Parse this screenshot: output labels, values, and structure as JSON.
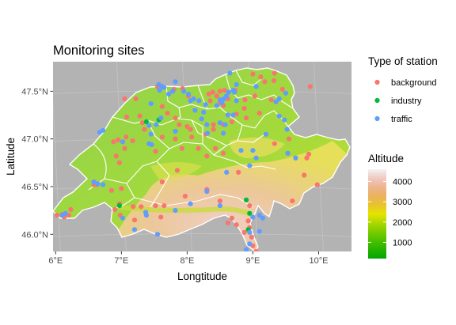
{
  "chart_data": {
    "type": "scatter",
    "title": "Monitoring sites",
    "xlabel": "Longtitude",
    "ylabel": "Latitude",
    "xlim": [
      5.96,
      10.5
    ],
    "ylim": [
      45.82,
      47.81
    ],
    "x_ticks": [
      {
        "value": 6,
        "label": "6°E"
      },
      {
        "value": 7,
        "label": "7°E"
      },
      {
        "value": 8,
        "label": "8°E"
      },
      {
        "value": 9,
        "label": "9°E"
      },
      {
        "value": 10,
        "label": "10°E"
      }
    ],
    "y_ticks": [
      {
        "value": 46.0,
        "label": "46.0°N"
      },
      {
        "value": 46.5,
        "label": "46.5°N"
      },
      {
        "value": 47.0,
        "label": "47.0°N"
      },
      {
        "value": 47.5,
        "label": "47.5°N"
      }
    ],
    "grid": true,
    "background_color": "#b3b3b3",
    "legend_station": {
      "title": "Type of station",
      "placement": "right",
      "entries": [
        {
          "label": "background",
          "color": "#f8766d"
        },
        {
          "label": "industry",
          "color": "#00ba38"
        },
        {
          "label": "traffic",
          "color": "#619cff"
        }
      ]
    },
    "legend_altitude": {
      "title": "Altitude",
      "placement": "right",
      "min": 200,
      "max": 4600,
      "tick_values": [
        1000,
        2000,
        3000,
        4000
      ],
      "tick_labels": [
        "1000",
        "2000",
        "3000",
        "4000"
      ],
      "colors": [
        "#00a600",
        "#24b300",
        "#4cc000",
        "#7acc00",
        "#add800",
        "#e6e400",
        "#e8c32e",
        "#ebb25e",
        "#edb48e",
        "#f0c9c0",
        "#f2f2f2"
      ]
    },
    "series": [
      {
        "name": "background",
        "color": "#f8766d",
        "points": [
          [
            6.02,
            46.2
          ],
          [
            6.1,
            46.21
          ],
          [
            6.13,
            46.18
          ],
          [
            6.2,
            46.2
          ],
          [
            6.23,
            46.26
          ],
          [
            6.58,
            46.52
          ],
          [
            6.63,
            46.52
          ],
          [
            6.85,
            46.46
          ],
          [
            6.92,
            46.82
          ],
          [
            6.88,
            46.97
          ],
          [
            6.95,
            46.99
          ],
          [
            7.07,
            47.02
          ],
          [
            7.05,
            46.9
          ],
          [
            6.97,
            46.75
          ],
          [
            7.0,
            46.48
          ],
          [
            6.97,
            46.32
          ],
          [
            6.9,
            46.26
          ],
          [
            7.08,
            47.23
          ],
          [
            7.17,
            46.98
          ],
          [
            7.28,
            47.24
          ],
          [
            7.32,
            47.17
          ],
          [
            7.35,
            47.1
          ],
          [
            7.05,
            47.42
          ],
          [
            7.22,
            47.42
          ],
          [
            7.52,
            46.87
          ],
          [
            7.62,
            47.02
          ],
          [
            7.82,
            47.22
          ],
          [
            7.88,
            47.15
          ],
          [
            7.62,
            46.55
          ],
          [
            7.85,
            46.67
          ],
          [
            7.62,
            47.34
          ],
          [
            7.7,
            47.27
          ],
          [
            7.55,
            47.55
          ],
          [
            7.8,
            47.52
          ],
          [
            7.93,
            47.53
          ],
          [
            8.02,
            47.45
          ],
          [
            8.0,
            47.13
          ],
          [
            8.07,
            47.02
          ],
          [
            7.92,
            46.9
          ],
          [
            7.82,
            47.0
          ],
          [
            8.05,
            47.1
          ],
          [
            8.28,
            47.05
          ],
          [
            8.35,
            47.4
          ],
          [
            8.33,
            47.47
          ],
          [
            8.39,
            47.49
          ],
          [
            8.45,
            47.45
          ],
          [
            8.5,
            47.5
          ],
          [
            8.55,
            47.35
          ],
          [
            8.5,
            47.38
          ],
          [
            8.62,
            47.42
          ],
          [
            8.57,
            47.51
          ],
          [
            8.73,
            47.51
          ],
          [
            8.75,
            47.26
          ],
          [
            8.87,
            47.32
          ],
          [
            8.9,
            47.22
          ],
          [
            8.88,
            47.41
          ],
          [
            8.68,
            47.18
          ],
          [
            8.55,
            47.15
          ],
          [
            8.4,
            47.15
          ],
          [
            8.4,
            47.1
          ],
          [
            8.43,
            46.9
          ],
          [
            8.55,
            46.85
          ],
          [
            8.17,
            46.9
          ],
          [
            7.97,
            46.4
          ],
          [
            7.65,
            46.3
          ],
          [
            7.52,
            46.3
          ],
          [
            7.3,
            46.29
          ],
          [
            7.18,
            46.29
          ],
          [
            6.98,
            46.2
          ],
          [
            7.2,
            46.15
          ],
          [
            7.6,
            46.18
          ],
          [
            8.3,
            46.47
          ],
          [
            8.5,
            46.35
          ],
          [
            8.62,
            46.12
          ],
          [
            8.68,
            46.17
          ],
          [
            8.75,
            46.1
          ],
          [
            8.87,
            46.02
          ],
          [
            8.93,
            46.14
          ],
          [
            8.95,
            46.07
          ],
          [
            8.98,
            45.97
          ],
          [
            9.0,
            45.88
          ],
          [
            9.05,
            45.82
          ],
          [
            8.95,
            46.3
          ],
          [
            9.1,
            47.27
          ],
          [
            9.03,
            47.45
          ],
          [
            9.2,
            47.05
          ],
          [
            9.28,
            47.41
          ],
          [
            9.33,
            46.95
          ],
          [
            9.45,
            47.52
          ],
          [
            9.55,
            47.0
          ],
          [
            9.53,
            46.85
          ],
          [
            9.6,
            46.35
          ],
          [
            9.65,
            46.8
          ],
          [
            9.78,
            46.62
          ],
          [
            9.82,
            46.8
          ],
          [
            9.85,
            46.84
          ],
          [
            9.87,
            47.55
          ],
          [
            9.98,
            46.52
          ],
          [
            9.0,
            47.68
          ],
          [
            9.12,
            47.65
          ],
          [
            9.18,
            47.6
          ],
          [
            9.05,
            47.55
          ],
          [
            8.78,
            46.65
          ],
          [
            9.33,
            47.69
          ],
          [
            9.32,
            47.61
          ],
          [
            8.3,
            46.82
          ]
        ]
      },
      {
        "name": "industry",
        "color": "#00ba38",
        "points": [
          [
            6.97,
            46.3
          ],
          [
            7.38,
            47.18
          ],
          [
            7.57,
            47.2
          ],
          [
            8.93,
            46.05
          ],
          [
            8.9,
            46.36
          ],
          [
            8.95,
            46.22
          ]
        ]
      },
      {
        "name": "traffic",
        "color": "#619cff",
        "points": [
          [
            6.1,
            46.2
          ],
          [
            6.15,
            46.22
          ],
          [
            6.64,
            46.53
          ],
          [
            6.72,
            46.52
          ],
          [
            6.58,
            46.55
          ],
          [
            6.67,
            47.07
          ],
          [
            6.72,
            47.09
          ],
          [
            7.02,
            46.97
          ],
          [
            7.42,
            47.14
          ],
          [
            7.45,
            47.05
          ],
          [
            7.42,
            46.95
          ],
          [
            7.46,
            46.94
          ],
          [
            7.53,
            47.15
          ],
          [
            7.6,
            47.22
          ],
          [
            7.57,
            47.57
          ],
          [
            7.62,
            47.55
          ],
          [
            7.65,
            47.54
          ],
          [
            7.58,
            47.51
          ],
          [
            7.72,
            47.47
          ],
          [
            7.78,
            47.5
          ],
          [
            7.82,
            47.6
          ],
          [
            7.95,
            47.5
          ],
          [
            8.02,
            47.47
          ],
          [
            8.05,
            47.4
          ],
          [
            8.1,
            47.42
          ],
          [
            8.18,
            47.4
          ],
          [
            8.28,
            47.36
          ],
          [
            8.22,
            47.21
          ],
          [
            8.31,
            47.06
          ],
          [
            8.3,
            47.15
          ],
          [
            8.25,
            47.28
          ],
          [
            8.45,
            47.35
          ],
          [
            8.53,
            47.38
          ],
          [
            8.56,
            47.42
          ],
          [
            8.5,
            47.41
          ],
          [
            8.6,
            47.45
          ],
          [
            8.63,
            47.49
          ],
          [
            8.72,
            47.49
          ],
          [
            8.75,
            47.4
          ],
          [
            8.7,
            47.51
          ],
          [
            8.75,
            47.57
          ],
          [
            8.65,
            47.69
          ],
          [
            8.7,
            47.25
          ],
          [
            8.62,
            47.25
          ],
          [
            8.58,
            47.15
          ],
          [
            8.5,
            47.17
          ],
          [
            8.55,
            47.06
          ],
          [
            8.6,
            46.65
          ],
          [
            8.82,
            46.88
          ],
          [
            9.0,
            46.88
          ],
          [
            9.05,
            47.55
          ],
          [
            9.35,
            47.39
          ],
          [
            9.4,
            47.42
          ],
          [
            9.4,
            47.24
          ],
          [
            9.48,
            47.2
          ],
          [
            9.53,
            46.85
          ],
          [
            9.5,
            47.48
          ],
          [
            9.52,
            47.1
          ],
          [
            9.05,
            46.8
          ],
          [
            9.2,
            47.05
          ],
          [
            9.65,
            46.8
          ],
          [
            9.15,
            46.17
          ],
          [
            9.0,
            46.18
          ],
          [
            9.1,
            46.2
          ],
          [
            9.1,
            46.03
          ],
          [
            8.95,
            45.9
          ],
          [
            8.9,
            45.84
          ],
          [
            8.95,
            46.02
          ],
          [
            8.3,
            46.45
          ],
          [
            8.5,
            46.3
          ],
          [
            7.37,
            46.23
          ],
          [
            7.82,
            46.25
          ],
          [
            8.05,
            46.32
          ],
          [
            7.02,
            46.17
          ],
          [
            7.2,
            46.05
          ],
          [
            7.38,
            46.2
          ],
          [
            7.55,
            46.0
          ],
          [
            7.82,
            47.08
          ],
          [
            7.45,
            47.37
          ],
          [
            8.12,
            47.3
          ],
          [
            8.95,
            46.72
          ]
        ]
      }
    ]
  }
}
